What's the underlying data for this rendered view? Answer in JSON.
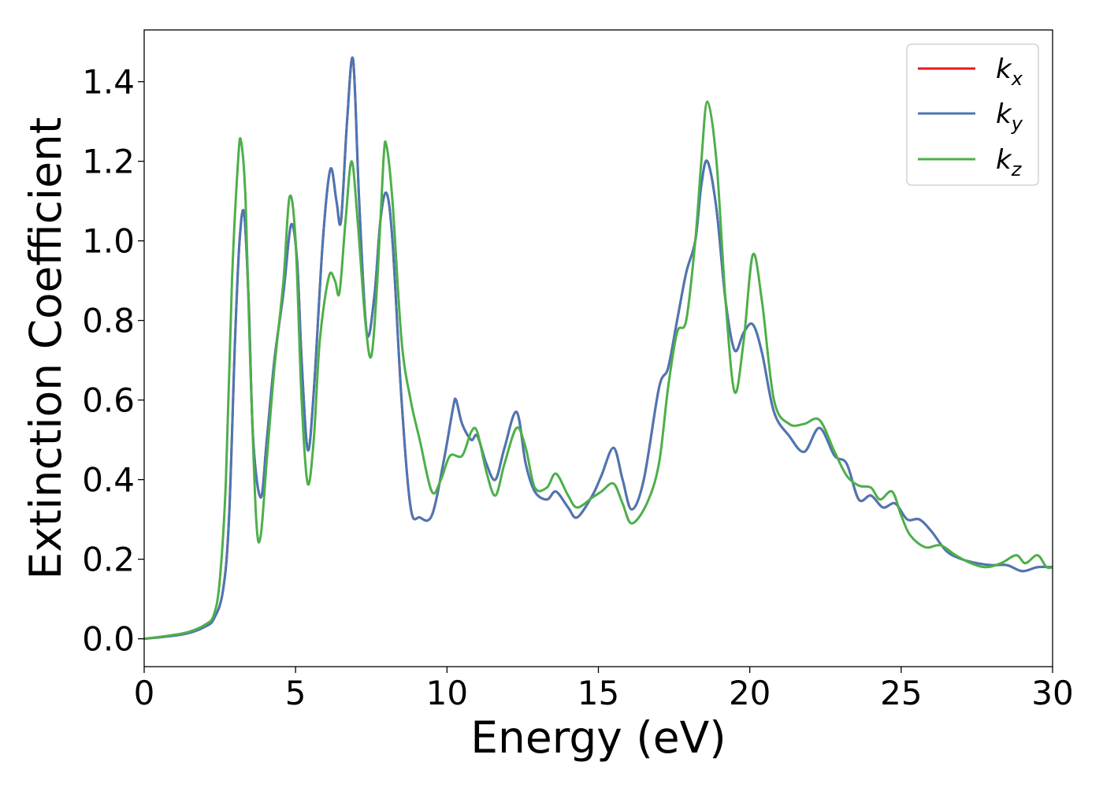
{
  "chart_data": {
    "type": "line",
    "xlabel": "Energy (eV)",
    "ylabel": "Extinction Coefficient",
    "xlim": [
      0,
      30
    ],
    "ylim": [
      -0.07,
      1.53
    ],
    "xticks": [
      0,
      5,
      10,
      15,
      20,
      25,
      30
    ],
    "xtick_labels": [
      "0",
      "5",
      "10",
      "15",
      "20",
      "25",
      "30"
    ],
    "yticks": [
      0.0,
      0.2,
      0.4,
      0.6,
      0.8,
      1.0,
      1.2,
      1.4
    ],
    "ytick_labels": [
      "0.0",
      "0.2",
      "0.4",
      "0.6",
      "0.8",
      "1.0",
      "1.2",
      "1.4"
    ],
    "grid": false,
    "legend_position": "top-right",
    "series": [
      {
        "name": "k_x",
        "legend_main": "k",
        "legend_sub": "x",
        "color": "#e41a1c",
        "points": [
          [
            0,
            0
          ],
          [
            1,
            0.008
          ],
          [
            1.5,
            0.015
          ],
          [
            2,
            0.03
          ],
          [
            2.3,
            0.05
          ],
          [
            2.6,
            0.12
          ],
          [
            2.8,
            0.3
          ],
          [
            3.0,
            0.75
          ],
          [
            3.15,
            1.0
          ],
          [
            3.3,
            1.07
          ],
          [
            3.45,
            0.85
          ],
          [
            3.6,
            0.5
          ],
          [
            3.85,
            0.355
          ],
          [
            4.05,
            0.5
          ],
          [
            4.3,
            0.7
          ],
          [
            4.6,
            0.87
          ],
          [
            4.85,
            1.04
          ],
          [
            5.05,
            0.95
          ],
          [
            5.2,
            0.7
          ],
          [
            5.4,
            0.475
          ],
          [
            5.6,
            0.62
          ],
          [
            5.9,
            1.0
          ],
          [
            6.15,
            1.18
          ],
          [
            6.35,
            1.1
          ],
          [
            6.5,
            1.05
          ],
          [
            6.7,
            1.3
          ],
          [
            6.9,
            1.455
          ],
          [
            7.1,
            1.1
          ],
          [
            7.35,
            0.77
          ],
          [
            7.6,
            0.86
          ],
          [
            7.8,
            1.05
          ],
          [
            8.0,
            1.12
          ],
          [
            8.2,
            1.0
          ],
          [
            8.5,
            0.6
          ],
          [
            8.8,
            0.33
          ],
          [
            9.1,
            0.305
          ],
          [
            9.5,
            0.31
          ],
          [
            9.9,
            0.45
          ],
          [
            10.2,
            0.58
          ],
          [
            10.3,
            0.6
          ],
          [
            10.5,
            0.54
          ],
          [
            10.8,
            0.5
          ],
          [
            11.0,
            0.51
          ],
          [
            11.3,
            0.44
          ],
          [
            11.6,
            0.4
          ],
          [
            11.9,
            0.48
          ],
          [
            12.3,
            0.57
          ],
          [
            12.6,
            0.44
          ],
          [
            12.9,
            0.37
          ],
          [
            13.3,
            0.35
          ],
          [
            13.6,
            0.37
          ],
          [
            14.0,
            0.33
          ],
          [
            14.3,
            0.305
          ],
          [
            14.8,
            0.36
          ],
          [
            15.1,
            0.41
          ],
          [
            15.5,
            0.48
          ],
          [
            15.8,
            0.4
          ],
          [
            16.1,
            0.325
          ],
          [
            16.5,
            0.4
          ],
          [
            17.0,
            0.63
          ],
          [
            17.3,
            0.68
          ],
          [
            17.6,
            0.8
          ],
          [
            17.9,
            0.92
          ],
          [
            18.2,
            1.0
          ],
          [
            18.4,
            1.14
          ],
          [
            18.6,
            1.2
          ],
          [
            18.9,
            1.08
          ],
          [
            19.2,
            0.85
          ],
          [
            19.5,
            0.725
          ],
          [
            19.8,
            0.77
          ],
          [
            20.1,
            0.79
          ],
          [
            20.4,
            0.72
          ],
          [
            20.8,
            0.57
          ],
          [
            21.3,
            0.51
          ],
          [
            21.8,
            0.47
          ],
          [
            22.3,
            0.53
          ],
          [
            22.8,
            0.46
          ],
          [
            23.2,
            0.44
          ],
          [
            23.6,
            0.35
          ],
          [
            24.0,
            0.36
          ],
          [
            24.4,
            0.33
          ],
          [
            24.8,
            0.34
          ],
          [
            25.2,
            0.3
          ],
          [
            25.6,
            0.3
          ],
          [
            26.0,
            0.27
          ],
          [
            26.5,
            0.22
          ],
          [
            27.0,
            0.2
          ],
          [
            27.5,
            0.19
          ],
          [
            28.0,
            0.185
          ],
          [
            28.5,
            0.185
          ],
          [
            29.0,
            0.17
          ],
          [
            29.5,
            0.18
          ],
          [
            30,
            0.18
          ]
        ]
      },
      {
        "name": "k_y",
        "legend_main": "k",
        "legend_sub": "y",
        "color": "#4a77b4",
        "points": [
          [
            0,
            0
          ],
          [
            1,
            0.008
          ],
          [
            1.5,
            0.015
          ],
          [
            2,
            0.03
          ],
          [
            2.3,
            0.05
          ],
          [
            2.6,
            0.12
          ],
          [
            2.8,
            0.3
          ],
          [
            3.0,
            0.75
          ],
          [
            3.15,
            1.0
          ],
          [
            3.3,
            1.07
          ],
          [
            3.45,
            0.85
          ],
          [
            3.6,
            0.5
          ],
          [
            3.85,
            0.355
          ],
          [
            4.05,
            0.5
          ],
          [
            4.3,
            0.7
          ],
          [
            4.6,
            0.87
          ],
          [
            4.85,
            1.04
          ],
          [
            5.05,
            0.95
          ],
          [
            5.2,
            0.7
          ],
          [
            5.4,
            0.475
          ],
          [
            5.6,
            0.62
          ],
          [
            5.9,
            1.0
          ],
          [
            6.15,
            1.18
          ],
          [
            6.35,
            1.1
          ],
          [
            6.5,
            1.05
          ],
          [
            6.7,
            1.3
          ],
          [
            6.9,
            1.455
          ],
          [
            7.1,
            1.1
          ],
          [
            7.35,
            0.77
          ],
          [
            7.6,
            0.86
          ],
          [
            7.8,
            1.05
          ],
          [
            8.0,
            1.12
          ],
          [
            8.2,
            1.0
          ],
          [
            8.5,
            0.6
          ],
          [
            8.8,
            0.33
          ],
          [
            9.1,
            0.305
          ],
          [
            9.5,
            0.31
          ],
          [
            9.9,
            0.45
          ],
          [
            10.2,
            0.58
          ],
          [
            10.3,
            0.6
          ],
          [
            10.5,
            0.54
          ],
          [
            10.8,
            0.5
          ],
          [
            11.0,
            0.51
          ],
          [
            11.3,
            0.44
          ],
          [
            11.6,
            0.4
          ],
          [
            11.9,
            0.48
          ],
          [
            12.3,
            0.57
          ],
          [
            12.6,
            0.44
          ],
          [
            12.9,
            0.37
          ],
          [
            13.3,
            0.35
          ],
          [
            13.6,
            0.37
          ],
          [
            14.0,
            0.33
          ],
          [
            14.3,
            0.305
          ],
          [
            14.8,
            0.36
          ],
          [
            15.1,
            0.41
          ],
          [
            15.5,
            0.48
          ],
          [
            15.8,
            0.4
          ],
          [
            16.1,
            0.325
          ],
          [
            16.5,
            0.4
          ],
          [
            17.0,
            0.63
          ],
          [
            17.3,
            0.68
          ],
          [
            17.6,
            0.8
          ],
          [
            17.9,
            0.92
          ],
          [
            18.2,
            1.0
          ],
          [
            18.4,
            1.14
          ],
          [
            18.6,
            1.2
          ],
          [
            18.9,
            1.08
          ],
          [
            19.2,
            0.85
          ],
          [
            19.5,
            0.725
          ],
          [
            19.8,
            0.77
          ],
          [
            20.1,
            0.79
          ],
          [
            20.4,
            0.72
          ],
          [
            20.8,
            0.57
          ],
          [
            21.3,
            0.51
          ],
          [
            21.8,
            0.47
          ],
          [
            22.3,
            0.53
          ],
          [
            22.8,
            0.46
          ],
          [
            23.2,
            0.44
          ],
          [
            23.6,
            0.35
          ],
          [
            24.0,
            0.36
          ],
          [
            24.4,
            0.33
          ],
          [
            24.8,
            0.34
          ],
          [
            25.2,
            0.3
          ],
          [
            25.6,
            0.3
          ],
          [
            26.0,
            0.27
          ],
          [
            26.5,
            0.22
          ],
          [
            27.0,
            0.2
          ],
          [
            27.5,
            0.19
          ],
          [
            28.0,
            0.185
          ],
          [
            28.5,
            0.185
          ],
          [
            29.0,
            0.17
          ],
          [
            29.5,
            0.18
          ],
          [
            30,
            0.18
          ]
        ]
      },
      {
        "name": "k_z",
        "legend_main": "k",
        "legend_sub": "z",
        "color": "#4daf4a",
        "points": [
          [
            0,
            0
          ],
          [
            1,
            0.01
          ],
          [
            1.5,
            0.018
          ],
          [
            2,
            0.035
          ],
          [
            2.3,
            0.06
          ],
          [
            2.5,
            0.15
          ],
          [
            2.7,
            0.4
          ],
          [
            2.9,
            0.9
          ],
          [
            3.1,
            1.2
          ],
          [
            3.2,
            1.25
          ],
          [
            3.35,
            1.1
          ],
          [
            3.5,
            0.7
          ],
          [
            3.7,
            0.3
          ],
          [
            3.85,
            0.26
          ],
          [
            4.05,
            0.45
          ],
          [
            4.3,
            0.68
          ],
          [
            4.6,
            0.9
          ],
          [
            4.8,
            1.11
          ],
          [
            5.0,
            1.0
          ],
          [
            5.2,
            0.6
          ],
          [
            5.4,
            0.39
          ],
          [
            5.6,
            0.5
          ],
          [
            5.8,
            0.75
          ],
          [
            6.1,
            0.91
          ],
          [
            6.3,
            0.9
          ],
          [
            6.45,
            0.87
          ],
          [
            6.65,
            1.05
          ],
          [
            6.85,
            1.2
          ],
          [
            7.05,
            1.05
          ],
          [
            7.3,
            0.8
          ],
          [
            7.5,
            0.71
          ],
          [
            7.7,
            0.9
          ],
          [
            7.9,
            1.2
          ],
          [
            8.0,
            1.24
          ],
          [
            8.2,
            1.1
          ],
          [
            8.5,
            0.75
          ],
          [
            8.8,
            0.6
          ],
          [
            9.1,
            0.5
          ],
          [
            9.5,
            0.37
          ],
          [
            9.8,
            0.4
          ],
          [
            10.1,
            0.46
          ],
          [
            10.5,
            0.46
          ],
          [
            10.8,
            0.52
          ],
          [
            11.0,
            0.52
          ],
          [
            11.3,
            0.42
          ],
          [
            11.6,
            0.36
          ],
          [
            11.9,
            0.44
          ],
          [
            12.3,
            0.53
          ],
          [
            12.6,
            0.48
          ],
          [
            12.9,
            0.38
          ],
          [
            13.3,
            0.38
          ],
          [
            13.6,
            0.415
          ],
          [
            14.0,
            0.36
          ],
          [
            14.3,
            0.33
          ],
          [
            14.8,
            0.355
          ],
          [
            15.1,
            0.37
          ],
          [
            15.5,
            0.39
          ],
          [
            15.8,
            0.34
          ],
          [
            16.1,
            0.29
          ],
          [
            16.6,
            0.34
          ],
          [
            17.0,
            0.44
          ],
          [
            17.3,
            0.63
          ],
          [
            17.6,
            0.77
          ],
          [
            17.9,
            0.8
          ],
          [
            18.2,
            1.0
          ],
          [
            18.4,
            1.2
          ],
          [
            18.6,
            1.35
          ],
          [
            18.9,
            1.2
          ],
          [
            19.2,
            0.85
          ],
          [
            19.5,
            0.62
          ],
          [
            19.8,
            0.75
          ],
          [
            20.1,
            0.965
          ],
          [
            20.4,
            0.85
          ],
          [
            20.8,
            0.6
          ],
          [
            21.3,
            0.54
          ],
          [
            21.8,
            0.54
          ],
          [
            22.3,
            0.55
          ],
          [
            22.8,
            0.47
          ],
          [
            23.2,
            0.41
          ],
          [
            23.6,
            0.385
          ],
          [
            24.0,
            0.38
          ],
          [
            24.3,
            0.35
          ],
          [
            24.7,
            0.37
          ],
          [
            25.0,
            0.31
          ],
          [
            25.3,
            0.26
          ],
          [
            25.8,
            0.23
          ],
          [
            26.3,
            0.235
          ],
          [
            26.8,
            0.21
          ],
          [
            27.3,
            0.19
          ],
          [
            27.8,
            0.18
          ],
          [
            28.3,
            0.19
          ],
          [
            28.8,
            0.21
          ],
          [
            29.1,
            0.19
          ],
          [
            29.5,
            0.21
          ],
          [
            29.8,
            0.18
          ],
          [
            30,
            0.18
          ]
        ]
      }
    ]
  }
}
